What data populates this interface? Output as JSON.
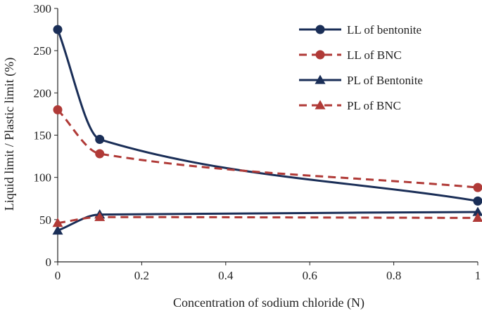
{
  "chart_data": {
    "type": "line",
    "xlabel": "Concentration of sodium chloride (N)",
    "ylabel": "Liquid limit / Plastic limit (%)",
    "xlim": [
      0,
      1
    ],
    "ylim": [
      0,
      300
    ],
    "x_ticks": [
      "0",
      "0.2",
      "0.4",
      "0.6",
      "0.8",
      "1"
    ],
    "y_ticks": [
      "0",
      "50",
      "100",
      "150",
      "200",
      "250",
      "300"
    ],
    "grid": false,
    "legend_position": "top-right",
    "series": [
      {
        "name": "LL of bentonite",
        "x": [
          0,
          0.1,
          1
        ],
        "y": [
          275,
          145,
          72
        ],
        "marker": "circle",
        "line": "solid",
        "color": "#1a2e57"
      },
      {
        "name": "LL of BNC",
        "x": [
          0,
          0.1,
          1
        ],
        "y": [
          180,
          128,
          88
        ],
        "marker": "circle",
        "line": "dashed",
        "color": "#b03a37"
      },
      {
        "name": "PL of Bentonite",
        "x": [
          0,
          0.1,
          1
        ],
        "y": [
          37,
          56,
          59
        ],
        "marker": "triangle",
        "line": "solid",
        "color": "#1a2e57"
      },
      {
        "name": "PL of BNC",
        "x": [
          0,
          0.1,
          1
        ],
        "y": [
          46,
          53,
          52
        ],
        "marker": "triangle",
        "line": "dashed",
        "color": "#b03a37"
      }
    ]
  }
}
